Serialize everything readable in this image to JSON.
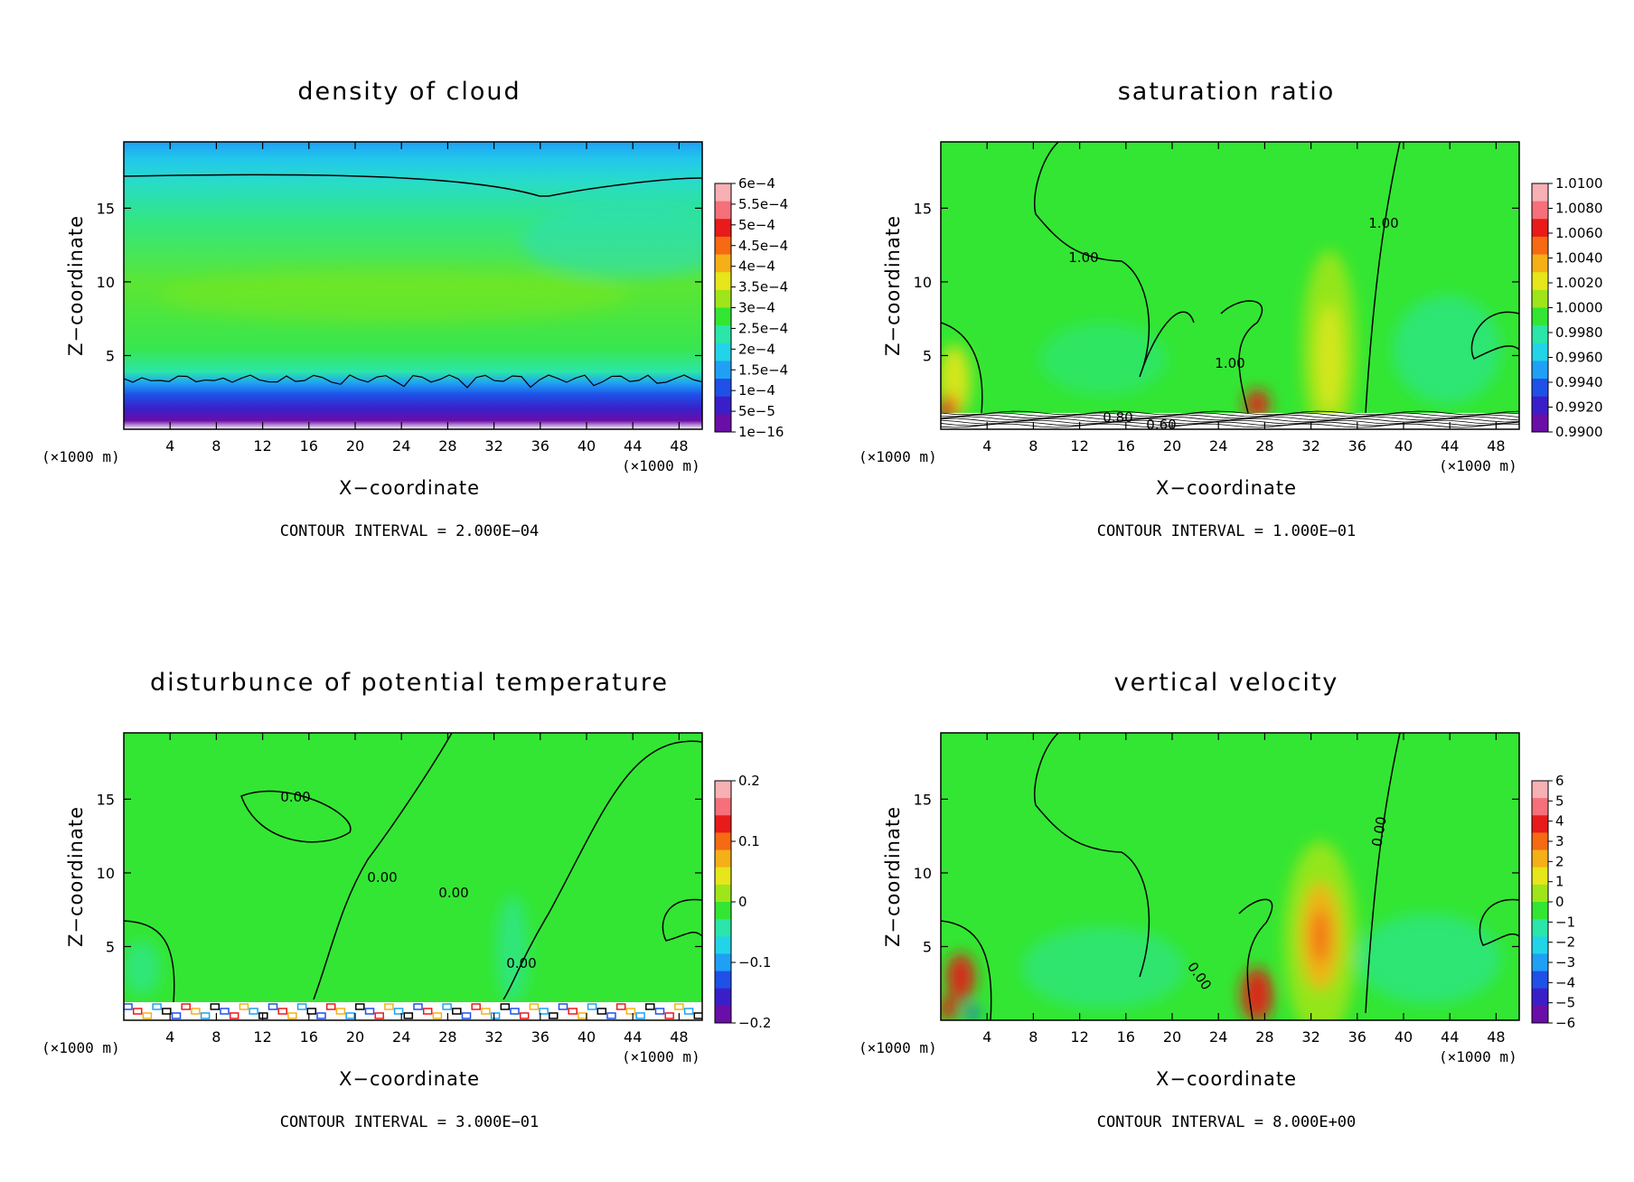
{
  "figure": {
    "background": "#ffffff"
  },
  "panels": [
    {
      "title": "density of cloud",
      "ylabel": "Z−coordinate",
      "xlabel": "X−coordinate",
      "x_units_left": "(×1000 m)",
      "x_units_right": "(×1000 m)",
      "contour_interval": "CONTOUR INTERVAL = 2.000E−04",
      "contour_labels": []
    },
    {
      "title": "saturation ratio",
      "ylabel": "Z−coordinate",
      "xlabel": "X−coordinate",
      "x_units_left": "(×1000 m)",
      "x_units_right": "(×1000 m)",
      "contour_interval": "CONTOUR INTERVAL = 1.000E−01",
      "contour_labels": [
        "1.00",
        "1.00",
        "1.00",
        "0.80",
        "0.60"
      ]
    },
    {
      "title": "disturbunce of potential temperature",
      "ylabel": "Z−coordinate",
      "xlabel": "X−coordinate",
      "x_units_left": "(×1000 m)",
      "x_units_right": "(×1000 m)",
      "contour_interval": "CONTOUR INTERVAL = 3.000E−01",
      "contour_labels": [
        "0.00",
        "0.00",
        "0.00",
        "0.00"
      ]
    },
    {
      "title": "vertical velocity",
      "ylabel": "Z−coordinate",
      "xlabel": "X−coordinate",
      "x_units_left": "(×1000 m)",
      "x_units_right": "(×1000 m)",
      "contour_interval": "CONTOUR INTERVAL = 8.000E+00",
      "contour_labels": [
        "0.00",
        "0.00"
      ]
    }
  ],
  "chart_data": [
    {
      "type": "heatmap",
      "title": "density of cloud",
      "xlabel": "X−coordinate",
      "ylabel": "Z−coordinate",
      "x_ticks": [
        4,
        8,
        12,
        16,
        20,
        24,
        28,
        32,
        36,
        40,
        44,
        48
      ],
      "y_ticks": [
        5,
        10,
        15
      ],
      "xlim": [
        0,
        50
      ],
      "ylim": [
        0,
        19.5
      ],
      "colorbar_labels": [
        "6e−4",
        "5.5e−4",
        "5e−4",
        "4.5e−4",
        "4e−4",
        "3.5e−4",
        "3e−4",
        "2.5e−4",
        "2e−4",
        "1.5e−4",
        "1e−4",
        "5e−5",
        "1e−16"
      ],
      "colorbar_range": [
        0,
        0.0006
      ]
    },
    {
      "type": "heatmap",
      "title": "saturation ratio",
      "xlabel": "X−coordinate",
      "ylabel": "Z−coordinate",
      "x_ticks": [
        4,
        8,
        12,
        16,
        20,
        24,
        28,
        32,
        36,
        40,
        44,
        48
      ],
      "y_ticks": [
        5,
        10,
        15
      ],
      "xlim": [
        0,
        50
      ],
      "ylim": [
        0,
        19.5
      ],
      "colorbar_labels": [
        "1.0100",
        "1.0080",
        "1.0060",
        "1.0040",
        "1.0020",
        "1.0000",
        "0.9980",
        "0.9960",
        "0.9940",
        "0.9920",
        "0.9900"
      ],
      "colorbar_range": [
        0.99,
        1.01
      ]
    },
    {
      "type": "heatmap",
      "title": "disturbunce of potential temperature",
      "xlabel": "X−coordinate",
      "ylabel": "Z−coordinate",
      "x_ticks": [
        4,
        8,
        12,
        16,
        20,
        24,
        28,
        32,
        36,
        40,
        44,
        48
      ],
      "y_ticks": [
        5,
        10,
        15
      ],
      "xlim": [
        0,
        50
      ],
      "ylim": [
        0,
        19.5
      ],
      "colorbar_labels": [
        "0.2",
        "0.1",
        "0",
        "−0.1",
        "−0.2"
      ],
      "colorbar_range": [
        -0.2,
        0.2
      ]
    },
    {
      "type": "heatmap",
      "title": "vertical velocity",
      "xlabel": "X−coordinate",
      "ylabel": "Z−coordinate",
      "x_ticks": [
        4,
        8,
        12,
        16,
        20,
        24,
        28,
        32,
        36,
        40,
        44,
        48
      ],
      "y_ticks": [
        5,
        10,
        15
      ],
      "xlim": [
        0,
        50
      ],
      "ylim": [
        0,
        19.5
      ],
      "colorbar_labels": [
        "6",
        "5",
        "4",
        "3",
        "2",
        "1",
        "0",
        "−1",
        "−2",
        "−3",
        "−4",
        "−5",
        "−6"
      ],
      "colorbar_range": [
        -6,
        6
      ]
    }
  ]
}
